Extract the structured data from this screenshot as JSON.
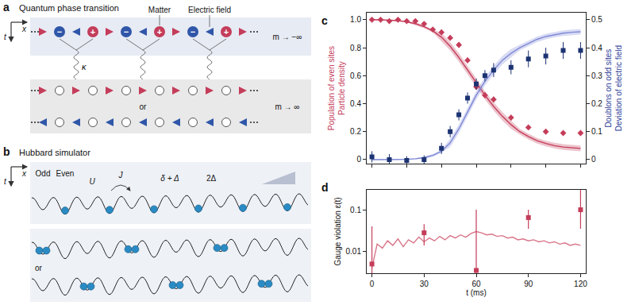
{
  "diagrams": {
    "a": {
      "letter": "a",
      "title": "Quantum phase transition",
      "labels": {
        "matter": "Matter",
        "field": "Electric field",
        "coupling": "κ",
        "minus": "−",
        "plus": "+",
        "or": "or",
        "time": "t",
        "space": "x",
        "mass_neg": "m → −∞",
        "mass_pos": "m → ∞"
      }
    },
    "b": {
      "letter": "b",
      "title": "Hubbard simulator",
      "labels": {
        "odd": "Odd",
        "even": "Even",
        "onsite": "U",
        "tunnel": "J",
        "detuning": "δ + Δ",
        "tilt": "2Δ",
        "or": "or",
        "time": "t",
        "space": "x"
      }
    }
  },
  "chart_data": [
    {
      "type": "scatter",
      "panel": "c",
      "grid": false,
      "tick_labels": "y",
      "xlim": [
        -3,
        123
      ],
      "xticks": [
        0,
        20,
        40,
        60,
        80,
        100,
        120
      ],
      "ylabel": [
        "Population of even sites",
        "Particle density"
      ],
      "ylim": [
        -0.03,
        1.05
      ],
      "yticks": [
        0,
        0.2,
        0.4,
        0.6,
        0.8,
        {
          "value": 1,
          "label": "1.0"
        }
      ],
      "y2label": [
        "Doublons on odd sites",
        "Deviation of electric field"
      ],
      "y2lim": [
        -0.015,
        0.525
      ],
      "y2ticks": [
        0,
        0.1,
        0.2,
        0.3,
        0.4,
        0.5
      ],
      "series": [
        {
          "type": "line",
          "color": "#c43d5a",
          "x": [
            0,
            5,
            10,
            15,
            20,
            25,
            30,
            35,
            40,
            45,
            50,
            55,
            60,
            65,
            70,
            75,
            80,
            85,
            90,
            95,
            100,
            105,
            110,
            115,
            120
          ],
          "values": [
            1.0,
            1.0,
            0.997,
            0.993,
            0.985,
            0.972,
            0.95,
            0.92,
            0.875,
            0.81,
            0.73,
            0.64,
            0.55,
            0.46,
            0.38,
            0.31,
            0.25,
            0.2,
            0.165,
            0.135,
            0.115,
            0.1,
            0.09,
            0.085,
            0.08
          ],
          "band_lower": [
            0.995,
            0.995,
            0.992,
            0.988,
            0.98,
            0.962,
            0.94,
            0.91,
            0.845,
            0.78,
            0.7,
            0.61,
            0.52,
            0.43,
            0.35,
            0.28,
            0.22,
            0.18,
            0.145,
            0.115,
            0.095,
            0.08,
            0.07,
            0.065,
            0.06
          ],
          "band_upper": [
            1.005,
            1.005,
            1.002,
            0.998,
            0.99,
            0.982,
            0.96,
            0.93,
            0.905,
            0.84,
            0.76,
            0.67,
            0.58,
            0.49,
            0.41,
            0.34,
            0.28,
            0.22,
            0.185,
            0.155,
            0.135,
            0.12,
            0.11,
            0.105,
            0.1
          ]
        },
        {
          "type": "line",
          "color": "#7f89d6",
          "axis": "y2",
          "x": [
            0,
            5,
            10,
            15,
            20,
            25,
            30,
            35,
            40,
            45,
            50,
            55,
            60,
            65,
            70,
            75,
            80,
            85,
            90,
            95,
            100,
            105,
            110,
            115,
            120
          ],
          "values": [
            0,
            0,
            0,
            0,
            0.001,
            0.003,
            0.007,
            0.015,
            0.03,
            0.06,
            0.11,
            0.17,
            0.23,
            0.28,
            0.32,
            0.355,
            0.38,
            0.4,
            0.415,
            0.43,
            0.44,
            0.447,
            0.452,
            0.455,
            0.457
          ],
          "band_lower": [
            -0.002,
            -0.002,
            -0.002,
            -0.002,
            -0.001,
            0.001,
            0.002,
            0.01,
            0.025,
            0.045,
            0.095,
            0.155,
            0.215,
            0.265,
            0.305,
            0.34,
            0.365,
            0.39,
            0.405,
            0.42,
            0.43,
            0.437,
            0.442,
            0.445,
            0.447
          ],
          "band_upper": [
            0.002,
            0.002,
            0.002,
            0.002,
            0.003,
            0.005,
            0.012,
            0.02,
            0.035,
            0.075,
            0.125,
            0.185,
            0.245,
            0.295,
            0.335,
            0.37,
            0.395,
            0.41,
            0.425,
            0.44,
            0.45,
            0.457,
            0.462,
            0.465,
            0.467
          ]
        },
        {
          "type": "scatter",
          "marker": "diamond",
          "color": "#c43d5a",
          "x": [
            0,
            5,
            10,
            15,
            20,
            25,
            30,
            35,
            40,
            45,
            50,
            55,
            60,
            65,
            70,
            80,
            90,
            100,
            110,
            120
          ],
          "values": [
            1.0,
            1.0,
            0.99,
            1.0,
            0.99,
            0.99,
            0.97,
            0.93,
            0.91,
            0.87,
            0.82,
            0.71,
            0.52,
            0.46,
            0.43,
            0.3,
            0.23,
            0.2,
            0.19,
            0.19
          ],
          "error": [
            0.01,
            0.01,
            0.01,
            0.01,
            0.01,
            0.01,
            0.015,
            0.015,
            0.02,
            0.02,
            0.02,
            0.02,
            0.02,
            0.02,
            0.02,
            0.02,
            0.015,
            0.015,
            0.015,
            0.015
          ]
        },
        {
          "type": "scatter",
          "marker": "square",
          "color": "#1c3372",
          "axis": "y2",
          "x": [
            0,
            10,
            20,
            30,
            40,
            45,
            50,
            55,
            60,
            65,
            70,
            80,
            90,
            100,
            110,
            120
          ],
          "values": [
            0.01,
            0.0,
            -0.003,
            0.0,
            0.04,
            0.1,
            0.16,
            0.22,
            0.27,
            0.3,
            0.32,
            0.33,
            0.36,
            0.37,
            0.39,
            0.39
          ],
          "error": [
            0.02,
            0.02,
            0.015,
            0.015,
            0.02,
            0.02,
            0.02,
            0.02,
            0.02,
            0.02,
            0.025,
            0.025,
            0.03,
            0.03,
            0.03,
            0.03
          ]
        }
      ]
    },
    {
      "type": "scatter",
      "panel": "d",
      "grid": false,
      "log": "y",
      "xlabel": "t (ms)",
      "xlim": [
        -3,
        123
      ],
      "xticks": [
        0,
        30,
        60,
        90,
        120
      ],
      "ylabel": "Gauge violation ε(t)",
      "ylim": [
        0.003,
        0.3
      ],
      "yticks": [
        0.01,
        0.1
      ],
      "series": [
        {
          "type": "line",
          "color": "#d9768a",
          "x": [
            0,
            3,
            6,
            9,
            12,
            15,
            18,
            21,
            24,
            27,
            30,
            33,
            36,
            39,
            42,
            45,
            48,
            51,
            54,
            57,
            60,
            63,
            66,
            69,
            72,
            75,
            78,
            81,
            84,
            87,
            90,
            93,
            96,
            99,
            102,
            105,
            108,
            111,
            114,
            117,
            120
          ],
          "values": [
            0.004,
            0.015,
            0.012,
            0.018,
            0.014,
            0.02,
            0.013,
            0.019,
            0.016,
            0.022,
            0.017,
            0.021,
            0.018,
            0.023,
            0.019,
            0.024,
            0.021,
            0.025,
            0.022,
            0.027,
            0.03,
            0.028,
            0.025,
            0.026,
            0.023,
            0.024,
            0.021,
            0.022,
            0.019,
            0.02,
            0.018,
            0.019,
            0.017,
            0.018,
            0.016,
            0.017,
            0.015,
            0.016,
            0.014,
            0.015,
            0.014
          ]
        },
        {
          "type": "scatter",
          "marker": "square",
          "color": "#c43d5a",
          "x": [
            0,
            30,
            60,
            90,
            120
          ],
          "values": [
            0.005,
            0.028,
            0.0035,
            0.065,
            0.1
          ],
          "error_plus": [
            0.035,
            0.017,
            0.0965,
            0.035,
            0.2
          ],
          "error_minus": [
            0.0045,
            0.014,
            0.0033,
            0.03,
            0.065
          ]
        }
      ]
    }
  ]
}
